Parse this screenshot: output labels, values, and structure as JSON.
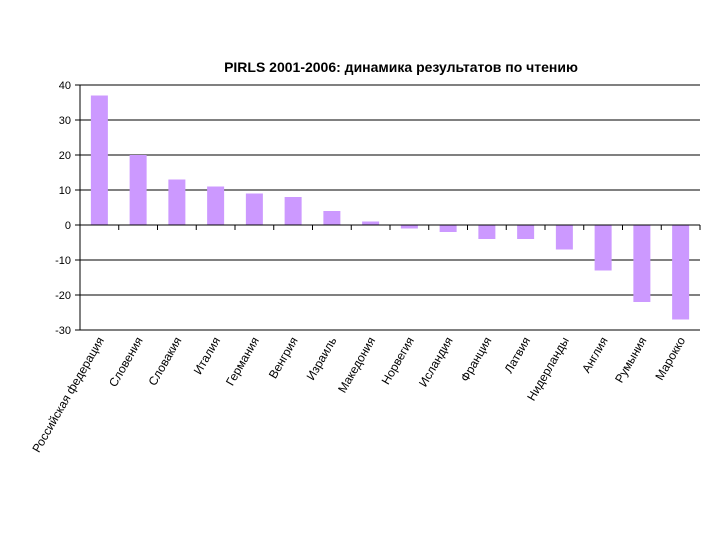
{
  "chart_data": {
    "type": "bar",
    "title": "PIRLS 2001-2006: динамика результатов по чтению",
    "xlabel": "",
    "ylabel": "",
    "ylim": [
      -30,
      40
    ],
    "yticks": [
      40,
      30,
      20,
      10,
      0,
      -10,
      -20,
      -30
    ],
    "grid": true,
    "bar_color": "#cc99ff",
    "categories": [
      "Российская федерация",
      "Словения",
      "Словакия",
      "Италия",
      "Германия",
      "Венгрия",
      "Израиль",
      "Македония",
      "Норвегия",
      "Исландия",
      "Франция",
      "Латвия",
      "Нидерланды",
      "Англия",
      "Румыния",
      "Марокко"
    ],
    "values": [
      37,
      20,
      13,
      11,
      9,
      8,
      4,
      1,
      -1,
      -2,
      -4,
      -4,
      -7,
      -13,
      -22,
      -27
    ]
  }
}
